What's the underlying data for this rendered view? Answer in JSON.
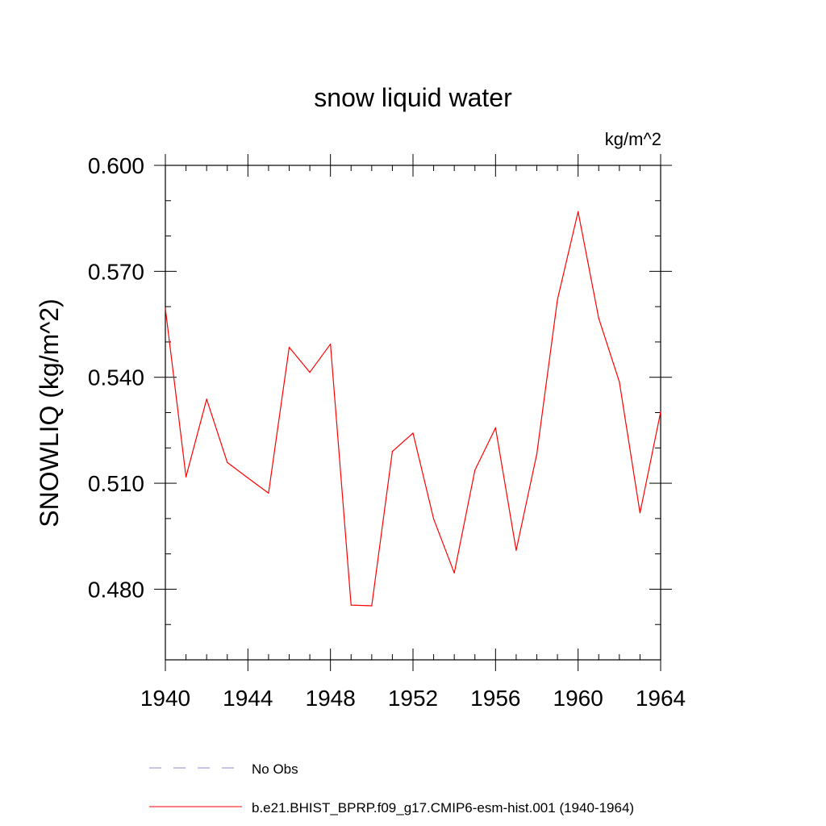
{
  "chart_data": {
    "type": "line",
    "title": "snow liquid water",
    "units": "kg/m^2",
    "ylabel": "SNOWLIQ  (kg/m^2)",
    "xlabel": "",
    "xlim": [
      1940,
      1964
    ],
    "ylim": [
      0.46,
      0.6
    ],
    "x_ticks": [
      "1940",
      "1944",
      "1948",
      "1952",
      "1956",
      "1960",
      "1964"
    ],
    "y_ticks": [
      "0.480",
      "0.510",
      "0.540",
      "0.570",
      "0.600"
    ],
    "grid": false,
    "legend_position": "bottom",
    "series": [
      {
        "name": "b.e21.BHIST_BPRP.f09_g17.CMIP6-esm-hist.001 (1940-1964)",
        "color": "#ff0000",
        "style": "solid",
        "x": [
          1940,
          1941,
          1942,
          1943,
          1944,
          1945,
          1946,
          1947,
          1948,
          1949,
          1950,
          1951,
          1952,
          1953,
          1954,
          1955,
          1956,
          1957,
          1958,
          1959,
          1960,
          1961,
          1962,
          1963,
          1964
        ],
        "values": [
          0.5595,
          0.5118,
          0.5338,
          0.5159,
          0.5115,
          0.5072,
          0.5485,
          0.5414,
          0.5494,
          0.4755,
          0.4753,
          0.519,
          0.5242,
          0.4999,
          0.4846,
          0.5137,
          0.5257,
          0.491,
          0.5183,
          0.562,
          0.5869,
          0.5567,
          0.5387,
          0.5016,
          0.5302
        ]
      }
    ],
    "legend": [
      {
        "label": "No Obs",
        "color": "#8888cc",
        "style": "dashed"
      },
      {
        "label": "b.e21.BHIST_BPRP.f09_g17.CMIP6-esm-hist.001 (1940-1964)",
        "color": "#ff0000",
        "style": "solid"
      }
    ]
  }
}
